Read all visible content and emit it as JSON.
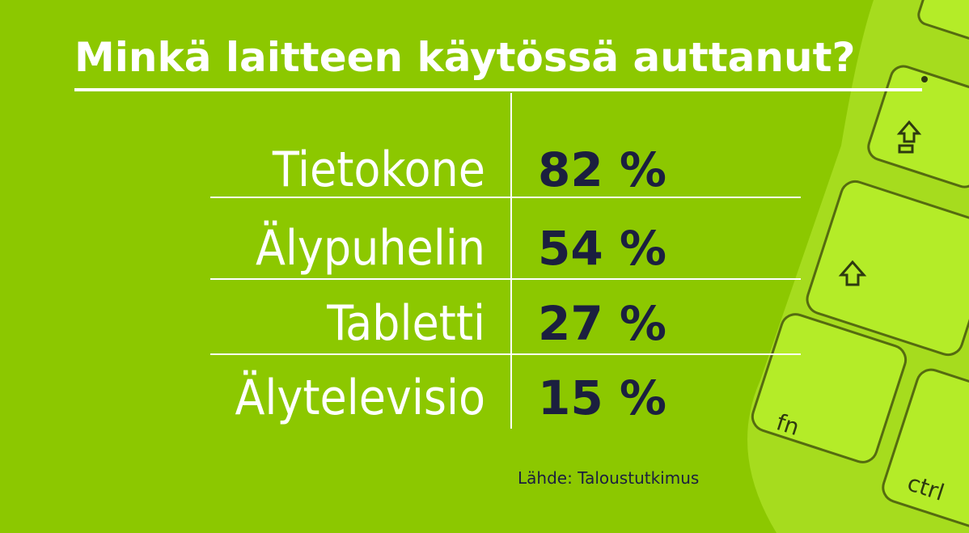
{
  "header": {
    "title": "Minkä laitteen käytössä auttanut?"
  },
  "table": {
    "rows": [
      [
        "Tietokone",
        "82 %"
      ],
      [
        "Älypuhelin",
        "54 %"
      ],
      [
        "Tabletti",
        "27 %"
      ],
      [
        "Älytelevisio",
        "15 %"
      ]
    ]
  },
  "footer": {
    "source": "Lähde: Taloustutkimus"
  },
  "keyboard": {
    "keys": [
      "fn",
      "ctrl"
    ]
  }
}
